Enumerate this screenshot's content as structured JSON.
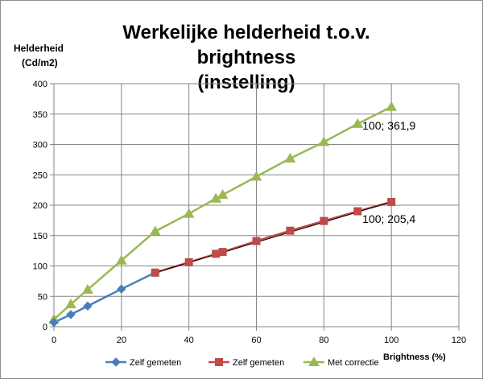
{
  "chart_data": {
    "type": "line",
    "title": "Werkelijke helderheid t.o.v. brightness (instelling)",
    "title_line1": "Werkelijke helderheid t.o.v. brightness",
    "title_line2": "(instelling)",
    "ylabel_line1": "Helderheid",
    "ylabel_line2": "(Cd/m2)",
    "xlabel": "Brightness (%)",
    "xlim": [
      0,
      120
    ],
    "ylim": [
      0,
      400
    ],
    "xticks": [
      0,
      20,
      40,
      60,
      80,
      100,
      120
    ],
    "yticks": [
      0,
      50,
      100,
      150,
      200,
      250,
      300,
      350,
      400
    ],
    "grid": true,
    "legend_position": "bottom",
    "series": [
      {
        "name": "Zelf gemeten",
        "color": "#4a7ebb",
        "marker": "diamond",
        "x": [
          0,
          5,
          10,
          20,
          30
        ],
        "y": [
          7,
          20,
          34,
          62,
          89
        ]
      },
      {
        "name": "Zelf gemeten",
        "color": "#be4b48",
        "marker": "square",
        "x": [
          30,
          40,
          48,
          50,
          60,
          70,
          80,
          90,
          100
        ],
        "y": [
          89,
          106,
          120,
          123,
          141,
          158,
          174,
          190,
          205.4
        ]
      },
      {
        "name": "Met correctie",
        "color": "#98b954",
        "marker": "triangle",
        "x": [
          0,
          5,
          10,
          20,
          30,
          40,
          48,
          50,
          60,
          70,
          80,
          90,
          100
        ],
        "y": [
          12,
          37,
          61,
          109,
          157,
          186,
          211,
          217,
          247,
          277,
          304,
          334,
          361.9
        ]
      }
    ],
    "trendline": {
      "x": [
        30,
        100
      ],
      "y": [
        89,
        205.4
      ],
      "color": "#000000"
    },
    "annotations": [
      {
        "text": "100; 361,9",
        "x": 100,
        "y": 361.9
      },
      {
        "text": "100; 205,4",
        "x": 100,
        "y": 205.4
      }
    ]
  }
}
